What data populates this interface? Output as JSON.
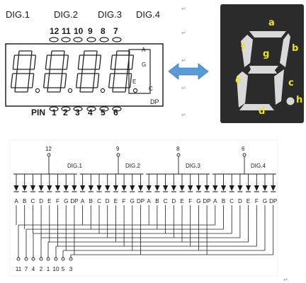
{
  "top_drawing": {
    "digit_labels": [
      "DIG.1",
      "DIG.2",
      "DIG.3",
      "DIG.4"
    ],
    "top_pins": [
      "12",
      "11",
      "10",
      "9",
      "8",
      "7"
    ],
    "bottom_pins_label": "PIN",
    "bottom_pins": [
      "1",
      "2",
      "3",
      "4",
      "5",
      "6"
    ],
    "seg_letters": [
      "A",
      "G",
      "E",
      "C"
    ],
    "dp_label": "DP"
  },
  "photo": {
    "segment_labels": [
      "a",
      "b",
      "c",
      "d",
      "e",
      "f",
      "g",
      "h"
    ],
    "label_color": "#f2e21a",
    "segment_color": "#d9d9d9",
    "background_color": "#2b2b2b"
  },
  "schematic": {
    "common_pins": [
      "12",
      "9",
      "8",
      "6"
    ],
    "digit_labels": [
      "DIG.1",
      "DIG.2",
      "DIG.3",
      "DIG.4"
    ],
    "segment_names": [
      "A",
      "B",
      "C",
      "D",
      "E",
      "F",
      "G",
      "DP"
    ],
    "bottom_pins": [
      "11",
      "7",
      "4",
      "2",
      "1",
      "10",
      "5",
      "3"
    ]
  },
  "arrow_color": "#5b9bd5",
  "paragraph_mark": "↵"
}
